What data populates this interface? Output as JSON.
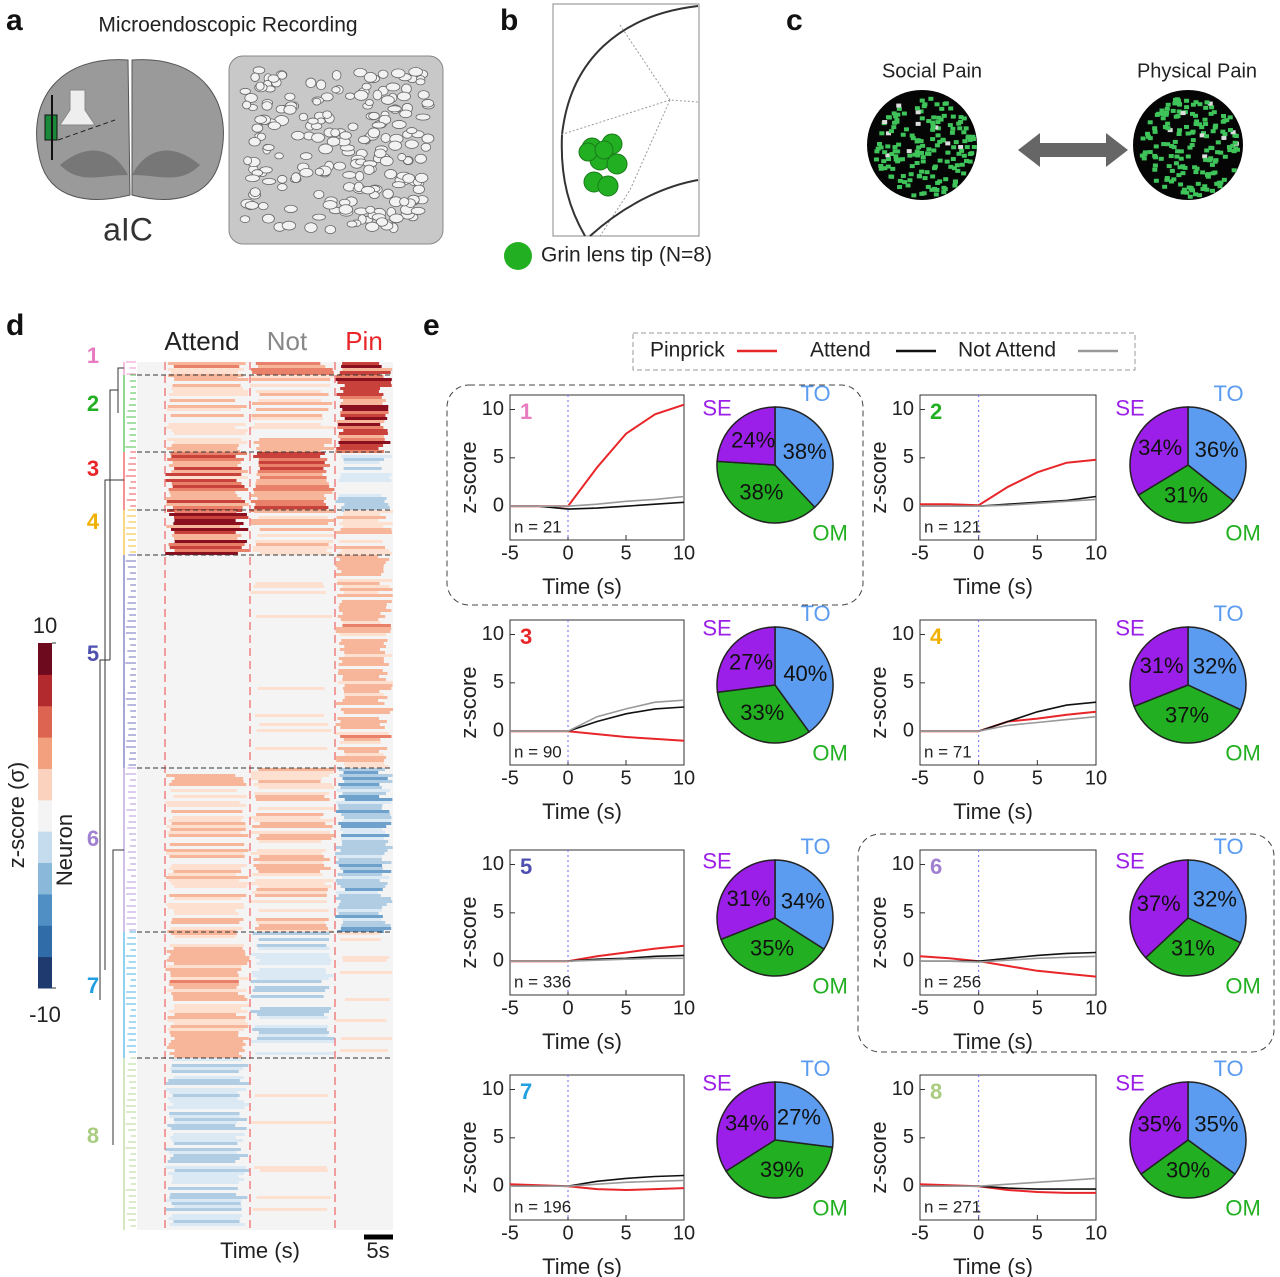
{
  "panels": {
    "a": {
      "label": "a",
      "title": "Microendoscopic Recording",
      "region": "aIC"
    },
    "b": {
      "label": "b",
      "legend": "Grin lens tip (N=8)"
    },
    "c": {
      "label": "c",
      "left": "Social Pain",
      "right": "Physical Pain"
    },
    "d": {
      "label": "d",
      "columns": [
        "Attend",
        "Not",
        "Pin"
      ],
      "clusters": [
        {
          "label": "1",
          "color": "#e87cc0"
        },
        {
          "label": "2",
          "color": "#22b022"
        },
        {
          "label": "3",
          "color": "#e8262a"
        },
        {
          "label": "4",
          "color": "#f0b000"
        },
        {
          "label": "5",
          "color": "#5050b0"
        },
        {
          "label": "6",
          "color": "#a080d0"
        },
        {
          "label": "7",
          "color": "#20a0e0"
        },
        {
          "label": "8",
          "color": "#a8cc80"
        }
      ],
      "xlabel": "Time (s)",
      "scale": "5s",
      "ylabel": "Neuron",
      "colorbar": {
        "label": "z-score (σ)",
        "ylim": [
          -10,
          10
        ],
        "yticks": [
          -10,
          10
        ]
      }
    },
    "e": {
      "label": "e"
    }
  },
  "chart_data": [
    {
      "type": "line",
      "title": "1",
      "title_color": "#e87cc0",
      "annotation": "n = 21",
      "xlabel": "Time (s)",
      "ylabel": "z-score",
      "x": [
        -5,
        -2.5,
        0,
        2.5,
        5,
        7.5,
        10
      ],
      "xlim": [
        -5,
        10
      ],
      "xticks": [
        -5,
        0,
        5,
        10
      ],
      "ylim": [
        -3.5,
        11.5
      ],
      "yticks": [
        0,
        5,
        10
      ],
      "series": [
        {
          "name": "Pinprick",
          "color": "#e8262a",
          "values": [
            0,
            0,
            0,
            4,
            7.5,
            9.5,
            10.5
          ]
        },
        {
          "name": "Attend",
          "color": "#111111",
          "values": [
            0,
            0,
            -0.3,
            -0.2,
            0,
            0.2,
            0.4
          ]
        },
        {
          "name": "Not Attend",
          "color": "#999999",
          "values": [
            0,
            0,
            0,
            0.2,
            0.5,
            0.7,
            1
          ]
        }
      ]
    },
    {
      "type": "line",
      "title": "2",
      "title_color": "#22b022",
      "annotation": "n = 121",
      "xlabel": "Time (s)",
      "ylabel": "z-score",
      "x": [
        -5,
        -2.5,
        0,
        2.5,
        5,
        7.5,
        10
      ],
      "xlim": [
        -5,
        10
      ],
      "xticks": [
        -5,
        0,
        5,
        10
      ],
      "ylim": [
        -3.5,
        11.5
      ],
      "yticks": [
        0,
        5,
        10
      ],
      "series": [
        {
          "name": "Pinprick",
          "color": "#e8262a",
          "values": [
            0.2,
            0.2,
            0.1,
            2,
            3.5,
            4.5,
            4.8
          ]
        },
        {
          "name": "Attend",
          "color": "#111111",
          "values": [
            0,
            0,
            0,
            0.2,
            0.4,
            0.6,
            1
          ]
        },
        {
          "name": "Not Attend",
          "color": "#999999",
          "values": [
            0,
            0,
            0,
            0.1,
            0.3,
            0.5,
            0.7
          ]
        }
      ]
    },
    {
      "type": "line",
      "title": "3",
      "title_color": "#e8262a",
      "annotation": "n = 90",
      "xlabel": "Time (s)",
      "ylabel": "z-score",
      "x": [
        -5,
        -2.5,
        0,
        2.5,
        5,
        7.5,
        10
      ],
      "xlim": [
        -5,
        10
      ],
      "xticks": [
        -5,
        0,
        5,
        10
      ],
      "ylim": [
        -3.5,
        11.5
      ],
      "yticks": [
        0,
        5,
        10
      ],
      "series": [
        {
          "name": "Pinprick",
          "color": "#e8262a",
          "values": [
            0,
            0,
            0,
            -0.3,
            -0.6,
            -0.8,
            -1
          ]
        },
        {
          "name": "Attend",
          "color": "#111111",
          "values": [
            0,
            0,
            0,
            1,
            1.8,
            2.3,
            2.5
          ]
        },
        {
          "name": "Not Attend",
          "color": "#999999",
          "values": [
            0,
            0,
            0,
            1.5,
            2.3,
            3,
            3.2
          ]
        }
      ]
    },
    {
      "type": "line",
      "title": "4",
      "title_color": "#f0b000",
      "annotation": "n = 71",
      "xlabel": "Time (s)",
      "ylabel": "z-score",
      "x": [
        -5,
        -2.5,
        0,
        2.5,
        5,
        7.5,
        10
      ],
      "xlim": [
        -5,
        10
      ],
      "xticks": [
        -5,
        0,
        5,
        10
      ],
      "ylim": [
        -3.5,
        11.5
      ],
      "yticks": [
        0,
        5,
        10
      ],
      "series": [
        {
          "name": "Pinprick",
          "color": "#e8262a",
          "values": [
            0,
            0,
            0,
            1,
            1.3,
            1.7,
            2
          ]
        },
        {
          "name": "Attend",
          "color": "#111111",
          "values": [
            0,
            0,
            0,
            1,
            2,
            2.7,
            3
          ]
        },
        {
          "name": "Not Attend",
          "color": "#999999",
          "values": [
            0,
            0,
            0,
            0.6,
            0.9,
            1.2,
            1.5
          ]
        }
      ]
    },
    {
      "type": "line",
      "title": "5",
      "title_color": "#5050b0",
      "annotation": "n = 336",
      "xlabel": "Time (s)",
      "ylabel": "z-score",
      "x": [
        -5,
        -2.5,
        0,
        2.5,
        5,
        7.5,
        10
      ],
      "xlim": [
        -5,
        10
      ],
      "xticks": [
        -5,
        0,
        5,
        10
      ],
      "ylim": [
        -3.5,
        11.5
      ],
      "yticks": [
        0,
        5,
        10
      ],
      "series": [
        {
          "name": "Pinprick",
          "color": "#e8262a",
          "values": [
            0,
            0,
            0,
            0.5,
            0.9,
            1.3,
            1.6
          ]
        },
        {
          "name": "Attend",
          "color": "#111111",
          "values": [
            0,
            0,
            0,
            0.2,
            0.3,
            0.5,
            0.6
          ]
        },
        {
          "name": "Not Attend",
          "color": "#999999",
          "values": [
            0,
            0,
            0,
            0.1,
            0.2,
            0.3,
            0.3
          ]
        }
      ]
    },
    {
      "type": "line",
      "title": "6",
      "title_color": "#a080d0",
      "annotation": "n = 256",
      "xlabel": "Time (s)",
      "ylabel": "z-score",
      "x": [
        -5,
        -2.5,
        0,
        2.5,
        5,
        7.5,
        10
      ],
      "xlim": [
        -5,
        10
      ],
      "xticks": [
        -5,
        0,
        5,
        10
      ],
      "ylim": [
        -3.5,
        11.5
      ],
      "yticks": [
        0,
        5,
        10
      ],
      "series": [
        {
          "name": "Pinprick",
          "color": "#e8262a",
          "values": [
            0.5,
            0.3,
            0,
            -0.5,
            -1,
            -1.3,
            -1.6
          ]
        },
        {
          "name": "Attend",
          "color": "#111111",
          "values": [
            0,
            0,
            0,
            0.3,
            0.6,
            0.8,
            0.9
          ]
        },
        {
          "name": "Not Attend",
          "color": "#999999",
          "values": [
            0,
            0,
            -0.1,
            0.1,
            0.3,
            0.4,
            0.5
          ]
        }
      ]
    },
    {
      "type": "line",
      "title": "7",
      "title_color": "#20a0e0",
      "annotation": "n = 196",
      "xlabel": "Time (s)",
      "ylabel": "z-score",
      "x": [
        -5,
        -2.5,
        0,
        2.5,
        5,
        7.5,
        10
      ],
      "xlim": [
        -5,
        10
      ],
      "xticks": [
        -5,
        0,
        5,
        10
      ],
      "ylim": [
        -3.5,
        11.5
      ],
      "yticks": [
        0,
        5,
        10
      ],
      "series": [
        {
          "name": "Pinprick",
          "color": "#e8262a",
          "values": [
            0.2,
            0.1,
            0,
            -0.3,
            -0.4,
            -0.3,
            -0.2
          ]
        },
        {
          "name": "Attend",
          "color": "#111111",
          "values": [
            0,
            0,
            0,
            0.5,
            0.8,
            1,
            1.1
          ]
        },
        {
          "name": "Not Attend",
          "color": "#999999",
          "values": [
            0,
            0,
            0,
            0.2,
            0.4,
            0.5,
            0.6
          ]
        }
      ]
    },
    {
      "type": "line",
      "title": "8",
      "title_color": "#a8cc80",
      "annotation": "n = 271",
      "xlabel": "Time (s)",
      "ylabel": "z-score",
      "x": [
        -5,
        -2.5,
        0,
        2.5,
        5,
        7.5,
        10
      ],
      "xlim": [
        -5,
        10
      ],
      "xticks": [
        -5,
        0,
        5,
        10
      ],
      "ylim": [
        -3.5,
        11.5
      ],
      "yticks": [
        0,
        5,
        10
      ],
      "series": [
        {
          "name": "Pinprick",
          "color": "#e8262a",
          "values": [
            0.2,
            0.1,
            0,
            -0.4,
            -0.6,
            -0.7,
            -0.7
          ]
        },
        {
          "name": "Attend",
          "color": "#111111",
          "values": [
            0,
            0,
            0,
            -0.2,
            -0.3,
            -0.3,
            -0.3
          ]
        },
        {
          "name": "Not Attend",
          "color": "#999999",
          "values": [
            0,
            0,
            0,
            0.2,
            0.4,
            0.6,
            0.8
          ]
        }
      ]
    },
    {
      "type": "pie",
      "categories": [
        "TO",
        "OM",
        "SE"
      ],
      "colors": [
        "#5b9cf0",
        "#22b022",
        "#9b1fe8"
      ],
      "values": [
        38,
        38,
        24
      ],
      "value_labels": [
        "38%",
        "38%",
        "24%"
      ]
    },
    {
      "type": "pie",
      "categories": [
        "TO",
        "OM",
        "SE"
      ],
      "colors": [
        "#5b9cf0",
        "#22b022",
        "#9b1fe8"
      ],
      "values": [
        36,
        31,
        34
      ],
      "value_labels": [
        "36%",
        "31%",
        "34%"
      ]
    },
    {
      "type": "pie",
      "categories": [
        "TO",
        "OM",
        "SE"
      ],
      "colors": [
        "#5b9cf0",
        "#22b022",
        "#9b1fe8"
      ],
      "values": [
        40,
        33,
        27
      ],
      "value_labels": [
        "40%",
        "33%",
        "27%"
      ]
    },
    {
      "type": "pie",
      "categories": [
        "TO",
        "OM",
        "SE"
      ],
      "colors": [
        "#5b9cf0",
        "#22b022",
        "#9b1fe8"
      ],
      "values": [
        32,
        37,
        31
      ],
      "value_labels": [
        "32%",
        "37%",
        "31%"
      ]
    },
    {
      "type": "pie",
      "categories": [
        "TO",
        "OM",
        "SE"
      ],
      "colors": [
        "#5b9cf0",
        "#22b022",
        "#9b1fe8"
      ],
      "values": [
        34,
        35,
        31
      ],
      "value_labels": [
        "34%",
        "35%",
        "31%"
      ]
    },
    {
      "type": "pie",
      "categories": [
        "TO",
        "OM",
        "SE"
      ],
      "colors": [
        "#5b9cf0",
        "#22b022",
        "#9b1fe8"
      ],
      "values": [
        32,
        31,
        37
      ],
      "value_labels": [
        "32%",
        "31%",
        "37%"
      ]
    },
    {
      "type": "pie",
      "categories": [
        "TO",
        "OM",
        "SE"
      ],
      "colors": [
        "#5b9cf0",
        "#22b022",
        "#9b1fe8"
      ],
      "values": [
        27,
        39,
        34
      ],
      "value_labels": [
        "27%",
        "39%",
        "34%"
      ]
    },
    {
      "type": "pie",
      "categories": [
        "TO",
        "OM",
        "SE"
      ],
      "colors": [
        "#5b9cf0",
        "#22b022",
        "#9b1fe8"
      ],
      "values": [
        35,
        30,
        35
      ],
      "value_labels": [
        "35%",
        "30%",
        "35%"
      ]
    }
  ]
}
